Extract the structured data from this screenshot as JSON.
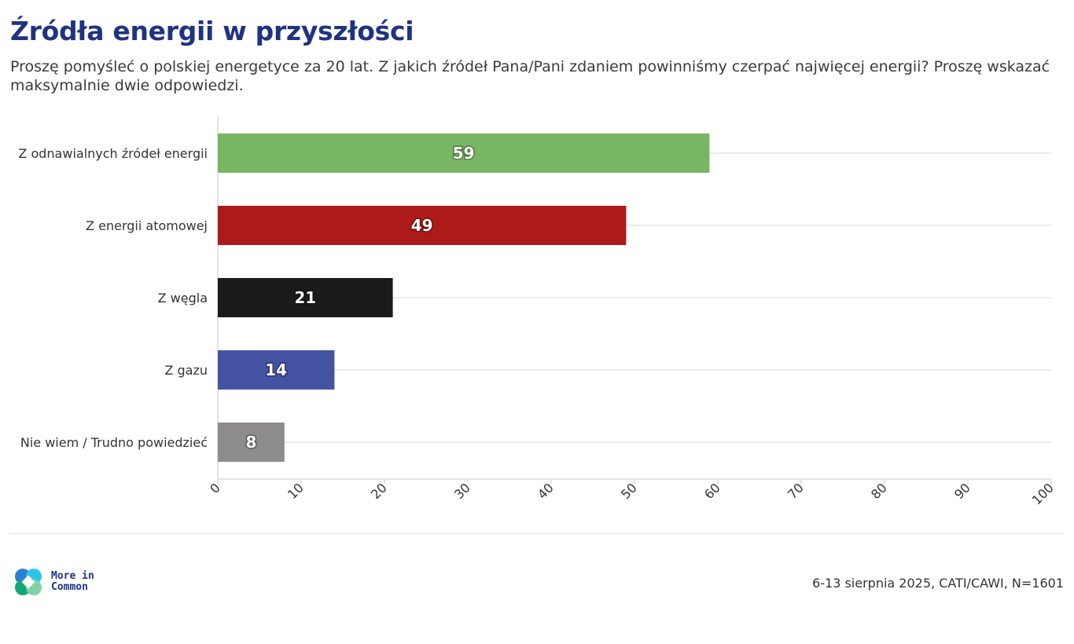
{
  "header": {
    "title": "Źródła energii w przyszłości",
    "subtitle": "Proszę pomyśleć o polskiej energetyce za 20 lat. Z jakich źródeł Pana/Pani zdaniem powinniśmy czerpać najwięcej energii? Proszę wskazać maksymalnie dwie odpowiedzi."
  },
  "chart_data": {
    "type": "bar",
    "orientation": "horizontal",
    "categories": [
      "Z odnawialnych źródeł energii",
      "Z energii atomowej",
      "Z węgla",
      "Z gazu",
      "Nie wiem / Trudno powiedzieć"
    ],
    "values": [
      59,
      49,
      21,
      14,
      8
    ],
    "colors": [
      "#79b663",
      "#ac1a1a",
      "#1b1b1b",
      "#4453a1",
      "#8d8b8c"
    ],
    "xlim": [
      0,
      100
    ],
    "xticks": [
      "0",
      "10",
      "20",
      "30",
      "40",
      "50",
      "60",
      "70",
      "80",
      "90",
      "100"
    ],
    "grid": "horizontal",
    "data_labels": true
  },
  "footer": {
    "logo_line1": "More in",
    "logo_line2": "Common",
    "logo_colors": [
      "#2e7fd4",
      "#2fc3e8",
      "#13a676",
      "#7fd3a8"
    ],
    "note": "6-13 sierpnia 2025, CATI/CAWI, N=1601"
  }
}
